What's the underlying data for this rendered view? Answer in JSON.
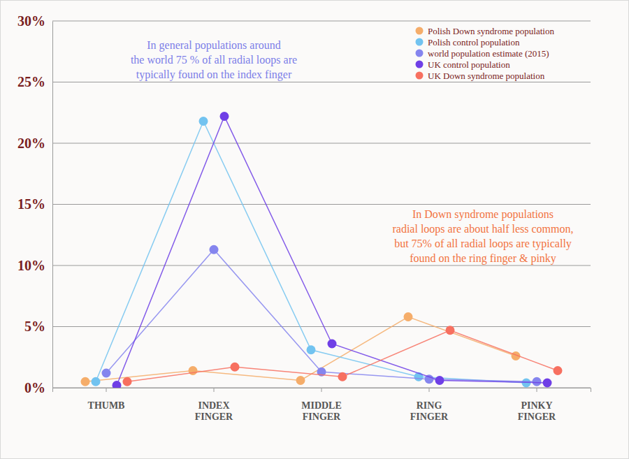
{
  "chart_data": {
    "type": "line",
    "categories": [
      "THUMB",
      "INDEX FINGER",
      "MIDDLE FINGER",
      "RING FINGER",
      "PINKY FINGER"
    ],
    "series": [
      {
        "name": "Polish Down syndrome population",
        "color": "#f5ad6a",
        "values": [
          0.5,
          1.4,
          0.6,
          5.8,
          2.6
        ]
      },
      {
        "name": "Polish control population",
        "color": "#72c3f0",
        "values": [
          0.5,
          21.8,
          3.1,
          0.9,
          0.4
        ]
      },
      {
        "name": "world population estimate (2015)",
        "color": "#8585ee",
        "values": [
          1.2,
          11.3,
          1.3,
          0.7,
          0.5
        ]
      },
      {
        "name": "UK control population",
        "color": "#6f3fe6",
        "values": [
          0.2,
          22.2,
          3.6,
          0.6,
          0.4
        ]
      },
      {
        "name": "UK Down syndrome population",
        "color": "#f77060",
        "values": [
          0.5,
          1.7,
          0.9,
          4.7,
          1.4
        ]
      }
    ],
    "ylim": [
      0,
      30
    ],
    "yticks": [
      {
        "value": 0,
        "label": "0%"
      },
      {
        "value": 5,
        "label": "5%"
      },
      {
        "value": 10,
        "label": "10%"
      },
      {
        "value": 15,
        "label": "15%"
      },
      {
        "value": 20,
        "label": "20%"
      },
      {
        "value": 25,
        "label": "25%"
      },
      {
        "value": 30,
        "label": "30%"
      }
    ],
    "grid": true,
    "legend": "upper right",
    "marker": "circle",
    "annotations": [
      {
        "text": [
          "In general populations around",
          "the world 75 % of all radial loops are",
          "typically found on the index finger"
        ],
        "color": "#7c7ee8"
      },
      {
        "text": [
          "In Down syndrome populations",
          "radial loops are about half less common,",
          "but 75% of all radial loops are typically",
          "found on the ring finger & pinky"
        ],
        "color": "#f2733f"
      }
    ]
  }
}
